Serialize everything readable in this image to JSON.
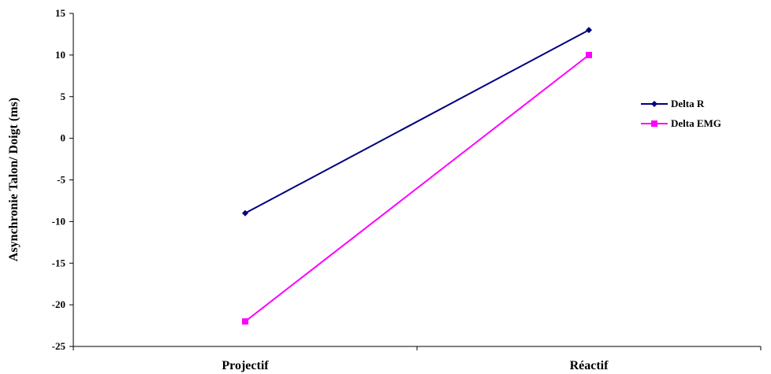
{
  "chart_data": {
    "type": "line",
    "categories": [
      "Projectif",
      "Réactif"
    ],
    "series": [
      {
        "name": "Delta R",
        "values": [
          -9,
          13
        ],
        "color": "#000080",
        "marker": "diamond"
      },
      {
        "name": "Delta EMG",
        "values": [
          -22,
          10
        ],
        "color": "#FF00FF",
        "marker": "square"
      }
    ],
    "ylabel": "Asynchronie Talon/ Doigt (ms)",
    "ylim": [
      -25,
      15
    ],
    "yticks": [
      15,
      10,
      5,
      0,
      -5,
      -10,
      -15,
      -20,
      -25
    ],
    "grid": false,
    "legend_position": "right"
  }
}
